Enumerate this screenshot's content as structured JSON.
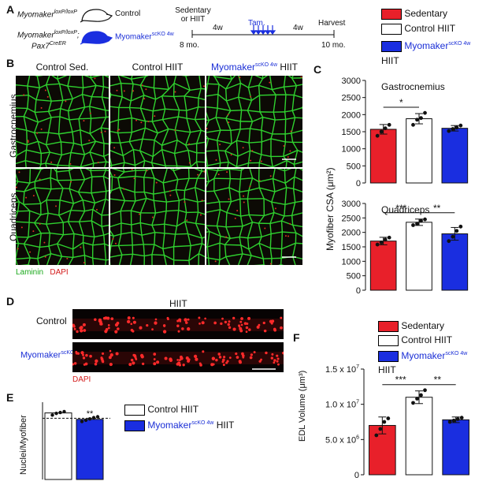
{
  "panelA": {
    "label": "A",
    "control_gene": "Myomaker",
    "control_sup": "loxP/loxP",
    "control_name": "Control",
    "ko_gene": "Myomaker",
    "ko_sup": "loxP/loxP",
    "ko_sep": ";",
    "ko_gene2": "Pax7",
    "ko_sup2": "CreER",
    "ko_name": "Myomaker",
    "ko_name_sup": "scKO 4w",
    "timeline": {
      "start_line1": "Sedentary",
      "start_line2": "or HIIT",
      "start_age": "8 mo.",
      "seg1": "4w",
      "tam": "Tam.",
      "seg2": "4w",
      "end_label": "Harvest",
      "end_age": "10 mo."
    },
    "legend": {
      "sedentary": "Sedentary",
      "control": "Control HIIT",
      "ko_name": "Myomaker",
      "ko_sup": "scKO 4w",
      "ko_suffix": " HIIT"
    }
  },
  "panelB": {
    "label": "B",
    "col1": "Control Sed.",
    "col2": "Control HIIT",
    "col3_name": "Myomaker",
    "col3_sup": "scKO 4w",
    "col3_suffix": " HIIT",
    "row1": "Gastrocnemius",
    "row2": "Quadriceps",
    "stain1": "Laminin",
    "stain2": "DAPI"
  },
  "panelC": {
    "label": "C",
    "ylabel": "Myofiber CSA (μm²)",
    "colors": {
      "sedentary": "#e8202a",
      "control": "#ffffff",
      "ko": "#1a2ee0"
    },
    "chart_data": [
      {
        "type": "bar",
        "title": "Gastrocnemius",
        "categories": [
          "Sedentary",
          "Control HIIT",
          "Myomaker scKO 4w HIIT"
        ],
        "values": [
          1570,
          1880,
          1600
        ],
        "errors": [
          140,
          150,
          80
        ],
        "points": [
          [
            1380,
            1500,
            1600,
            1700
          ],
          [
            1700,
            1850,
            1900,
            2050
          ],
          [
            1520,
            1580,
            1620,
            1680
          ]
        ],
        "yticks": [
          "0",
          "500",
          "1000",
          "1500",
          "2000",
          "2500",
          "3000"
        ],
        "ylim": [
          0,
          3000
        ],
        "significance": [
          {
            "pair": [
              0,
              1
            ],
            "label": "*"
          }
        ]
      },
      {
        "type": "bar",
        "title": "Quadriceps",
        "categories": [
          "Sedentary",
          "Control HIIT",
          "Myomaker scKO 4w HIIT"
        ],
        "values": [
          1700,
          2350,
          1950
        ],
        "errors": [
          130,
          110,
          220
        ],
        "points": [
          [
            1580,
            1650,
            1750,
            1820
          ],
          [
            2250,
            2300,
            2400,
            2450
          ],
          [
            1700,
            1850,
            2050,
            2200
          ]
        ],
        "yticks": [
          "0",
          "500",
          "1000",
          "1500",
          "2000",
          "2500",
          "3000"
        ],
        "ylim": [
          0,
          3000
        ],
        "significance": [
          {
            "pair": [
              0,
              1
            ],
            "label": "***"
          },
          {
            "pair": [
              1,
              2
            ],
            "label": "**"
          }
        ]
      }
    ]
  },
  "panelD": {
    "label": "D",
    "title": "HIIT",
    "row1": "Control",
    "row2_name": "Myomaker",
    "row2_sup": "scKO 4w",
    "stain": "DAPI"
  },
  "panelE": {
    "label": "E",
    "ylabel": "Nuclei/Myofiber",
    "legend_control": "Control HIIT",
    "legend_ko_name": "Myomaker",
    "legend_ko_sup": "scKO 4w",
    "legend_ko_suffix": " HIIT",
    "chart_data": {
      "type": "bar",
      "categories": [
        "Control HIIT",
        "Myomaker scKO 4w HIIT"
      ],
      "values": [
        310,
        280
      ],
      "points": [
        [
          300,
          308,
          312,
          316
        ],
        [
          270,
          276,
          282,
          288,
          292
        ]
      ],
      "dashed_reference": 285,
      "significance": [
        {
          "bar": 1,
          "label": "**"
        }
      ]
    }
  },
  "panelF": {
    "label": "F",
    "ylabel": "EDL Volume (μm³)",
    "legend": {
      "sedentary": "Sedentary",
      "control": "Control HIIT",
      "ko_name": "Myomaker",
      "ko_sup": "scKO 4w",
      "ko_suffix": " HIIT"
    },
    "chart_data": {
      "type": "bar",
      "categories": [
        "Sedentary",
        "Control HIIT",
        "Myomaker scKO 4w HIIT"
      ],
      "values": [
        7000000.0,
        11000000.0,
        7800000.0
      ],
      "errors": [
        1200000.0,
        900000.0,
        400000.0
      ],
      "points": [
        [
          5600000.0,
          6500000.0,
          7500000.0,
          8000000.0
        ],
        [
          10200000.0,
          10800000.0,
          11300000.0,
          12000000.0
        ],
        [
          7500000.0,
          7700000.0,
          7900000.0,
          8100000.0
        ]
      ],
      "yticks": [
        {
          "value": 0,
          "base": "0",
          "exp": ""
        },
        {
          "value": 5000000,
          "base": "5.0 x 10",
          "exp": "6"
        },
        {
          "value": 10000000,
          "base": "1.0 x 10",
          "exp": "7"
        },
        {
          "value": 15000000,
          "base": "1.5 x 10",
          "exp": "7"
        }
      ],
      "ylim": [
        0,
        15000000
      ],
      "significance": [
        {
          "pair": [
            0,
            1
          ],
          "label": "***"
        },
        {
          "pair": [
            1,
            2
          ],
          "label": "**"
        }
      ]
    }
  }
}
